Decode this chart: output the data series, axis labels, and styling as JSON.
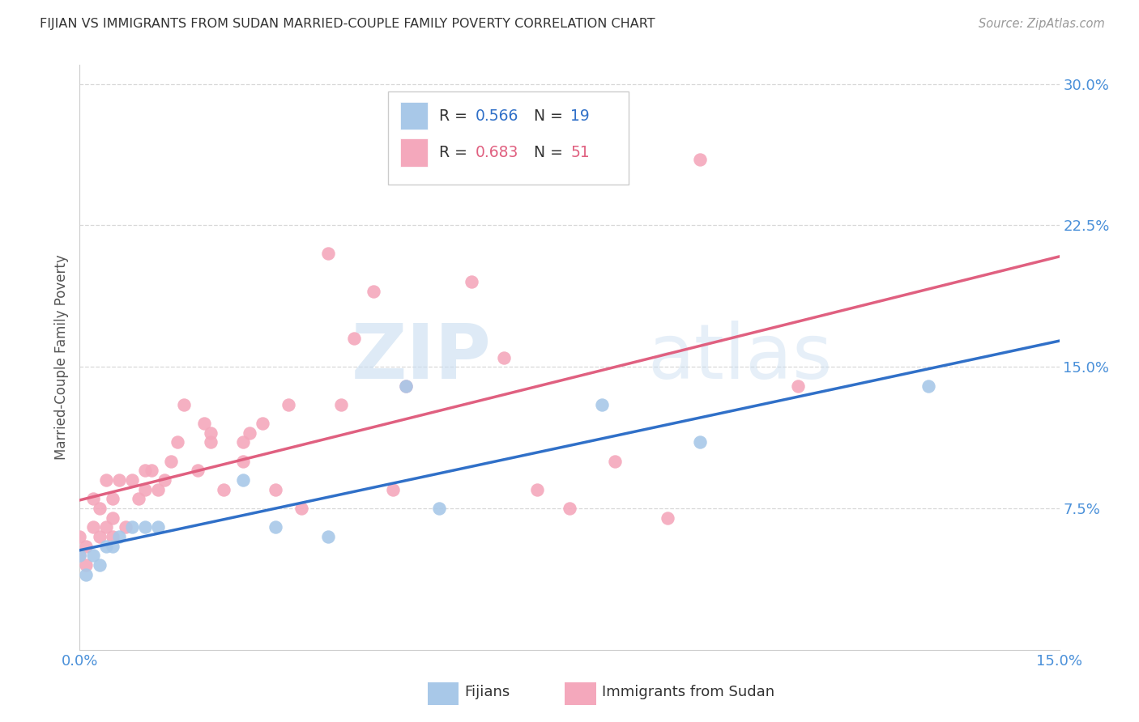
{
  "title": "FIJIAN VS IMMIGRANTS FROM SUDAN MARRIED-COUPLE FAMILY POVERTY CORRELATION CHART",
  "source": "Source: ZipAtlas.com",
  "tick_color": "#4a90d9",
  "ylabel": "Married-Couple Family Poverty",
  "xlim": [
    0.0,
    0.15
  ],
  "ylim": [
    0.0,
    0.31
  ],
  "xticks": [
    0.0,
    0.025,
    0.05,
    0.075,
    0.1,
    0.125,
    0.15
  ],
  "yticks": [
    0.075,
    0.15,
    0.225,
    0.3
  ],
  "ytick_labels": [
    "7.5%",
    "15.0%",
    "22.5%",
    "30.0%"
  ],
  "xtick_labels": [
    "0.0%",
    "",
    "",
    "",
    "",
    "",
    "15.0%"
  ],
  "fijian_color": "#a8c8e8",
  "sudan_color": "#f4a8bc",
  "fijian_line_color": "#3070c8",
  "sudan_line_color": "#e06080",
  "fijian_x": [
    0.0,
    0.001,
    0.002,
    0.003,
    0.004,
    0.005,
    0.006,
    0.008,
    0.01,
    0.012,
    0.025,
    0.03,
    0.038,
    0.05,
    0.055,
    0.08,
    0.095,
    0.13
  ],
  "fijian_y": [
    0.05,
    0.04,
    0.05,
    0.045,
    0.055,
    0.055,
    0.06,
    0.065,
    0.065,
    0.065,
    0.09,
    0.065,
    0.06,
    0.14,
    0.075,
    0.13,
    0.11,
    0.14
  ],
  "sudan_x": [
    0.0,
    0.0,
    0.001,
    0.001,
    0.002,
    0.002,
    0.003,
    0.003,
    0.004,
    0.004,
    0.005,
    0.005,
    0.005,
    0.006,
    0.007,
    0.008,
    0.009,
    0.01,
    0.01,
    0.011,
    0.012,
    0.013,
    0.014,
    0.015,
    0.016,
    0.018,
    0.019,
    0.02,
    0.02,
    0.022,
    0.025,
    0.025,
    0.026,
    0.028,
    0.03,
    0.032,
    0.034,
    0.038,
    0.04,
    0.042,
    0.045,
    0.048,
    0.05,
    0.06,
    0.065,
    0.07,
    0.075,
    0.082,
    0.09,
    0.095,
    0.11
  ],
  "sudan_y": [
    0.05,
    0.06,
    0.045,
    0.055,
    0.065,
    0.08,
    0.06,
    0.075,
    0.065,
    0.09,
    0.06,
    0.07,
    0.08,
    0.09,
    0.065,
    0.09,
    0.08,
    0.085,
    0.095,
    0.095,
    0.085,
    0.09,
    0.1,
    0.11,
    0.13,
    0.095,
    0.12,
    0.11,
    0.115,
    0.085,
    0.1,
    0.11,
    0.115,
    0.12,
    0.085,
    0.13,
    0.075,
    0.21,
    0.13,
    0.165,
    0.19,
    0.085,
    0.14,
    0.195,
    0.155,
    0.085,
    0.075,
    0.1,
    0.07,
    0.26,
    0.14
  ],
  "watermark_zip": "ZIP",
  "watermark_atlas": "atlas",
  "background_color": "#ffffff",
  "grid_color": "#d8d8d8"
}
